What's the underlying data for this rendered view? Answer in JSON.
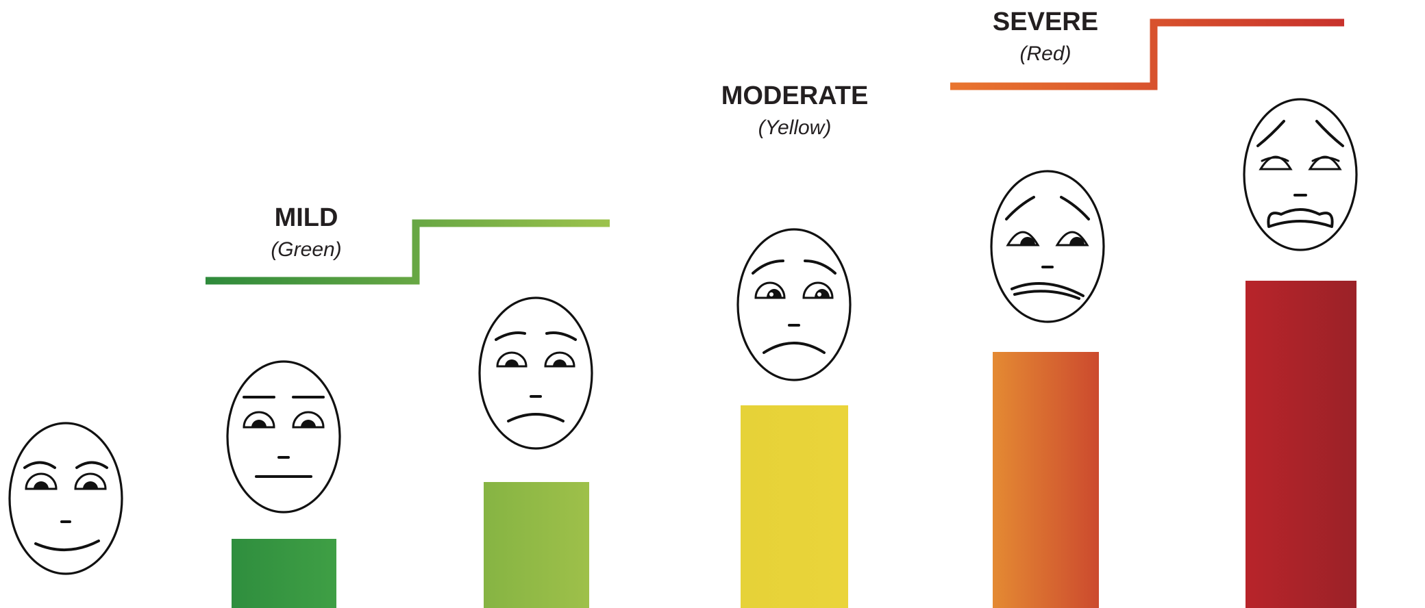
{
  "categories": [
    {
      "title": "MILD",
      "subtitle": "(Green)",
      "color": "#3a9a45"
    },
    {
      "title": "MODERATE",
      "subtitle": "(Yellow)",
      "color": "#e7d333"
    },
    {
      "title": "SEVERE",
      "subtitle": "(Red)",
      "color": "#c6312b"
    }
  ],
  "levels": [
    {
      "face": "smiling-face",
      "level": 0,
      "bar_color": null
    },
    {
      "face": "neutral-face",
      "level": 1,
      "bar_gradient": [
        "#2f8e3e",
        "#3f9f45"
      ]
    },
    {
      "face": "slightly-sad-face",
      "level": 2,
      "bar_gradient": [
        "#86b443",
        "#9ec04a"
      ]
    },
    {
      "face": "sad-face",
      "level": 3,
      "bar_gradient": [
        "#e6d238",
        "#ead43a"
      ]
    },
    {
      "face": "very-sad-face",
      "level": 4,
      "bar_gradient": [
        "#e48a33",
        "#cc4a2e"
      ]
    },
    {
      "face": "distressed-face",
      "level": 5,
      "bar_gradient": [
        "#b8242a",
        "#9b2228"
      ]
    }
  ]
}
